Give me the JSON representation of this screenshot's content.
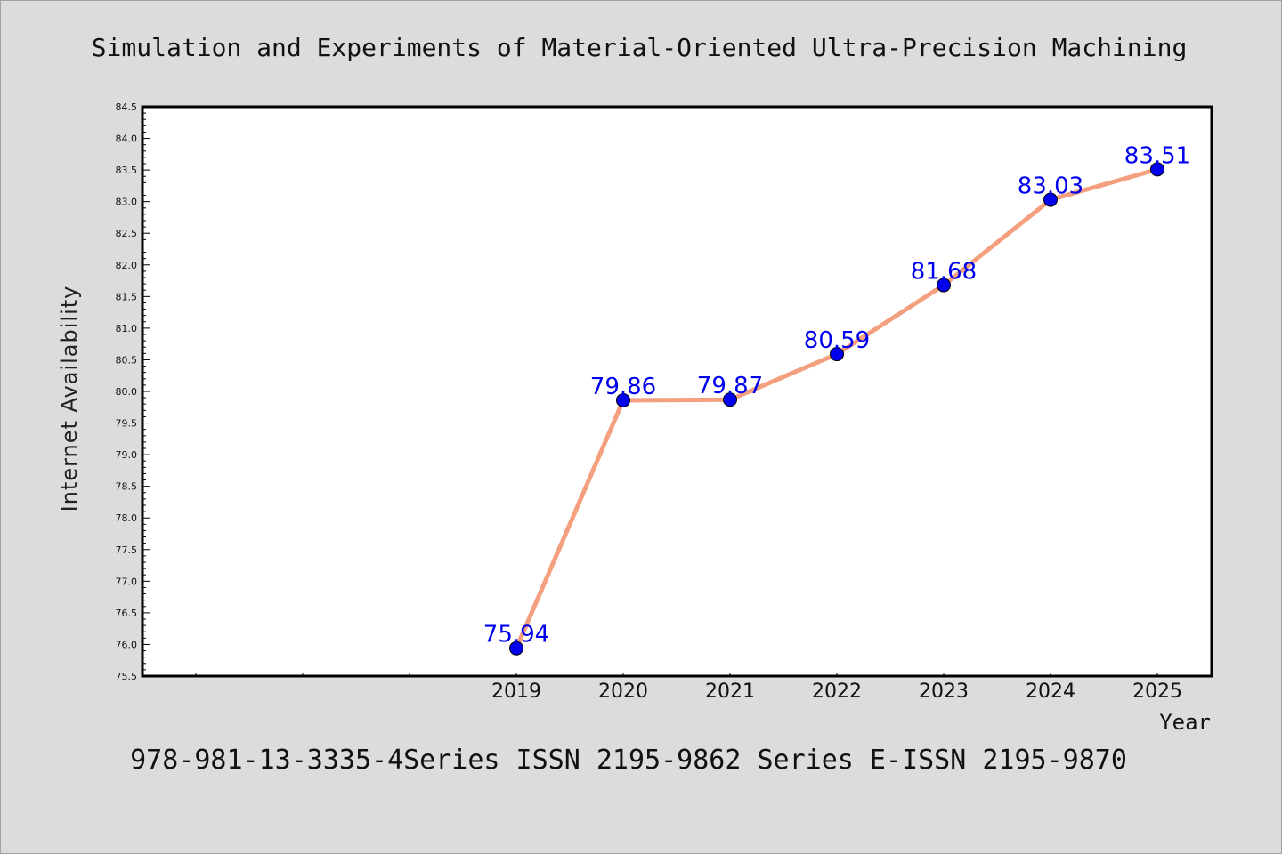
{
  "chart_data": {
    "type": "line",
    "title": "Simulation and Experiments of Material-Oriented Ultra-Precision Machining",
    "footer": "978-981-13-3335-4Series ISSN 2195-9862 Series E-ISSN 2195-9870",
    "xlabel": "Year",
    "ylabel": "Internet Availability",
    "x": [
      "2019",
      "2020",
      "2021",
      "2022",
      "2023",
      "2024",
      "2025"
    ],
    "series": [
      {
        "values": [
          75.94,
          79.86,
          79.87,
          80.59,
          81.68,
          83.03,
          83.51
        ]
      }
    ],
    "data_labels": [
      "75.94",
      "79.86",
      "79.87",
      "80.59",
      "81.68",
      "83.03",
      "83.51"
    ],
    "ylim": [
      75.5,
      84.5
    ],
    "yticks": [
      "75.5",
      "76.0",
      "76.5",
      "77.0",
      "77.5",
      "78.0",
      "78.5",
      "79.0",
      "79.5",
      "80.0",
      "80.5",
      "81.0",
      "81.5",
      "82.0",
      "82.5",
      "83.0",
      "83.5",
      "84.0",
      "84.5"
    ],
    "grid": false,
    "colors": {
      "line": "#f4a07e",
      "marker": "#0000ee",
      "label": "#0000ee",
      "background": "#dcdcdc",
      "plot_area": "#ffffff"
    }
  }
}
